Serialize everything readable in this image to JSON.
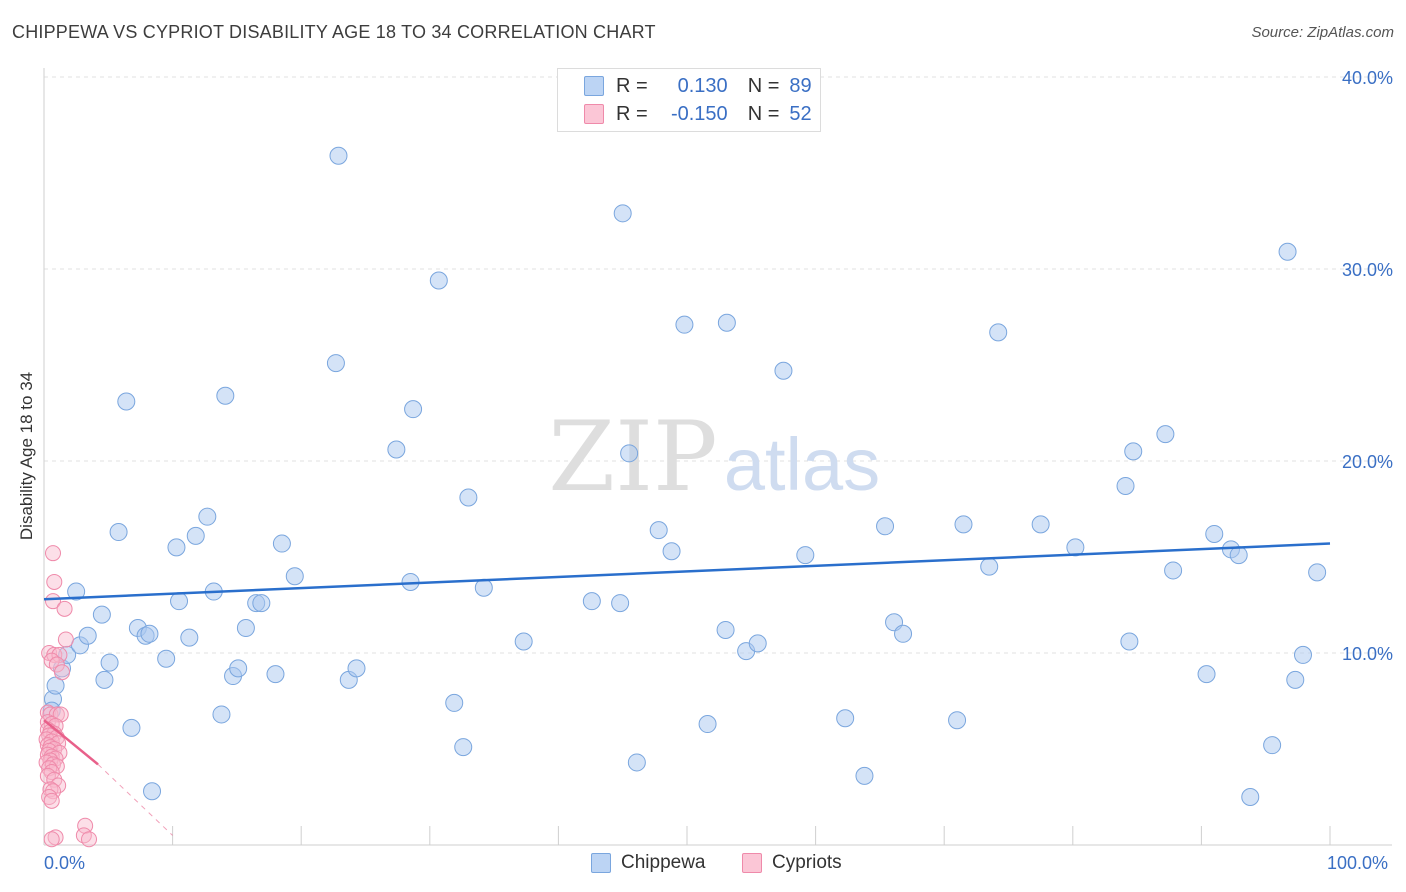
{
  "chart_data": {
    "type": "scatter",
    "title": "CHIPPEWA VS CYPRIOT DISABILITY AGE 18 TO 34 CORRELATION CHART",
    "source": "Source: ZipAtlas.com",
    "xlabel": "",
    "ylabel": "Disability Age 18 to 34",
    "xlim": [
      0,
      100
    ],
    "ylim": [
      0,
      40
    ],
    "x_tick_labels": [
      "0.0%",
      "100.0%"
    ],
    "y_ticks": [
      10,
      20,
      30,
      40
    ],
    "y_tick_labels": [
      "10.0%",
      "20.0%",
      "30.0%",
      "40.0%"
    ],
    "grid": true,
    "watermark": {
      "zip": "ZIP",
      "atlas": "atlas"
    },
    "legend": {
      "position": "top-center",
      "r_label": "R =",
      "n_label": "N =",
      "entries": [
        {
          "name": "Chippewa",
          "r": "0.130",
          "n": "89"
        },
        {
          "name": "Cypriots",
          "r": "-0.150",
          "n": "52"
        }
      ]
    },
    "series": [
      {
        "name": "Chippewa",
        "color": "#a9c8f0",
        "stroke": "#7aa6de",
        "trend_color": "#2a6fcc",
        "trend": {
          "x": [
            0,
            100
          ],
          "y": [
            12.8,
            15.7
          ]
        },
        "points": [
          [
            0.7,
            7.6
          ],
          [
            0.9,
            8.3
          ],
          [
            1.4,
            9.2
          ],
          [
            1.8,
            9.9
          ],
          [
            2.5,
            13.2
          ],
          [
            2.8,
            10.4
          ],
          [
            3.4,
            10.9
          ],
          [
            4.5,
            12.0
          ],
          [
            4.7,
            8.6
          ],
          [
            5.1,
            9.5
          ],
          [
            5.8,
            16.3
          ],
          [
            6.4,
            23.1
          ],
          [
            6.8,
            6.1
          ],
          [
            7.3,
            11.3
          ],
          [
            7.9,
            10.9
          ],
          [
            8.2,
            11.0
          ],
          [
            8.4,
            2.8
          ],
          [
            9.5,
            9.7
          ],
          [
            10.3,
            15.5
          ],
          [
            10.5,
            12.7
          ],
          [
            11.3,
            10.8
          ],
          [
            11.8,
            16.1
          ],
          [
            12.7,
            17.1
          ],
          [
            13.2,
            13.2
          ],
          [
            13.8,
            6.8
          ],
          [
            14.1,
            23.4
          ],
          [
            14.7,
            8.8
          ],
          [
            15.1,
            9.2
          ],
          [
            15.7,
            11.3
          ],
          [
            16.5,
            12.6
          ],
          [
            16.9,
            12.6
          ],
          [
            18.0,
            8.9
          ],
          [
            18.5,
            15.7
          ],
          [
            19.5,
            14.0
          ],
          [
            22.7,
            25.1
          ],
          [
            22.9,
            35.9
          ],
          [
            23.7,
            8.6
          ],
          [
            24.3,
            9.2
          ],
          [
            27.4,
            20.6
          ],
          [
            28.5,
            13.7
          ],
          [
            28.7,
            22.7
          ],
          [
            30.7,
            29.4
          ],
          [
            31.9,
            7.4
          ],
          [
            32.6,
            5.1
          ],
          [
            33.0,
            18.1
          ],
          [
            34.2,
            13.4
          ],
          [
            37.3,
            10.6
          ],
          [
            42.6,
            12.7
          ],
          [
            44.8,
            12.6
          ],
          [
            45.0,
            32.9
          ],
          [
            45.5,
            20.4
          ],
          [
            46.1,
            4.3
          ],
          [
            47.8,
            16.4
          ],
          [
            48.8,
            15.3
          ],
          [
            49.8,
            27.1
          ],
          [
            51.6,
            6.3
          ],
          [
            53.0,
            11.2
          ],
          [
            53.1,
            27.2
          ],
          [
            54.6,
            10.1
          ],
          [
            55.5,
            10.5
          ],
          [
            57.5,
            24.7
          ],
          [
            59.2,
            15.1
          ],
          [
            62.3,
            6.6
          ],
          [
            63.8,
            3.6
          ],
          [
            65.4,
            16.6
          ],
          [
            66.1,
            11.6
          ],
          [
            66.8,
            11.0
          ],
          [
            71.0,
            6.5
          ],
          [
            71.5,
            16.7
          ],
          [
            73.5,
            14.5
          ],
          [
            74.2,
            26.7
          ],
          [
            77.5,
            16.7
          ],
          [
            80.2,
            15.5
          ],
          [
            84.1,
            18.7
          ],
          [
            84.4,
            10.6
          ],
          [
            84.7,
            20.5
          ],
          [
            87.2,
            21.4
          ],
          [
            87.8,
            14.3
          ],
          [
            90.4,
            8.9
          ],
          [
            91.0,
            16.2
          ],
          [
            92.3,
            15.4
          ],
          [
            92.9,
            15.1
          ],
          [
            93.8,
            2.5
          ],
          [
            95.5,
            5.2
          ],
          [
            96.7,
            30.9
          ],
          [
            97.3,
            8.6
          ],
          [
            97.9,
            9.9
          ],
          [
            99.0,
            14.2
          ],
          [
            0.6,
            7.0
          ]
        ]
      },
      {
        "name": "Cypriots",
        "color": "#f9b8cc",
        "stroke": "#ef8aaa",
        "trend_color": "#e8608a",
        "trend": {
          "x": [
            0,
            4.2
          ],
          "y": [
            6.5,
            4.2
          ]
        },
        "trend_extension": {
          "x": [
            4.2,
            10
          ],
          "y": [
            4.2,
            0.5
          ]
        },
        "points": [
          [
            0.7,
            15.2
          ],
          [
            0.8,
            13.7
          ],
          [
            0.7,
            12.7
          ],
          [
            1.6,
            12.3
          ],
          [
            1.7,
            10.7
          ],
          [
            0.4,
            10.0
          ],
          [
            0.8,
            9.9
          ],
          [
            1.2,
            9.9
          ],
          [
            0.6,
            9.6
          ],
          [
            1.0,
            9.4
          ],
          [
            1.4,
            9.0
          ],
          [
            0.3,
            6.9
          ],
          [
            0.5,
            6.8
          ],
          [
            1.0,
            6.8
          ],
          [
            1.3,
            6.8
          ],
          [
            0.3,
            6.4
          ],
          [
            0.6,
            6.3
          ],
          [
            0.9,
            6.2
          ],
          [
            0.3,
            6.0
          ],
          [
            0.5,
            5.9
          ],
          [
            0.8,
            5.8
          ],
          [
            0.4,
            5.7
          ],
          [
            1.0,
            5.6
          ],
          [
            0.2,
            5.5
          ],
          [
            0.6,
            5.4
          ],
          [
            1.1,
            5.3
          ],
          [
            0.3,
            5.2
          ],
          [
            0.5,
            5.1
          ],
          [
            0.8,
            5.0
          ],
          [
            0.4,
            4.9
          ],
          [
            1.2,
            4.8
          ],
          [
            0.3,
            4.7
          ],
          [
            0.6,
            4.6
          ],
          [
            0.9,
            4.5
          ],
          [
            0.5,
            4.4
          ],
          [
            0.2,
            4.3
          ],
          [
            0.7,
            4.2
          ],
          [
            1.0,
            4.1
          ],
          [
            0.4,
            4.0
          ],
          [
            0.6,
            3.8
          ],
          [
            0.3,
            3.6
          ],
          [
            0.8,
            3.4
          ],
          [
            1.1,
            3.1
          ],
          [
            0.5,
            2.9
          ],
          [
            0.7,
            2.8
          ],
          [
            0.4,
            2.5
          ],
          [
            0.6,
            2.3
          ],
          [
            3.2,
            1.0
          ],
          [
            3.1,
            0.5
          ],
          [
            0.9,
            0.4
          ],
          [
            0.6,
            0.3
          ],
          [
            3.5,
            0.3
          ]
        ]
      }
    ]
  }
}
